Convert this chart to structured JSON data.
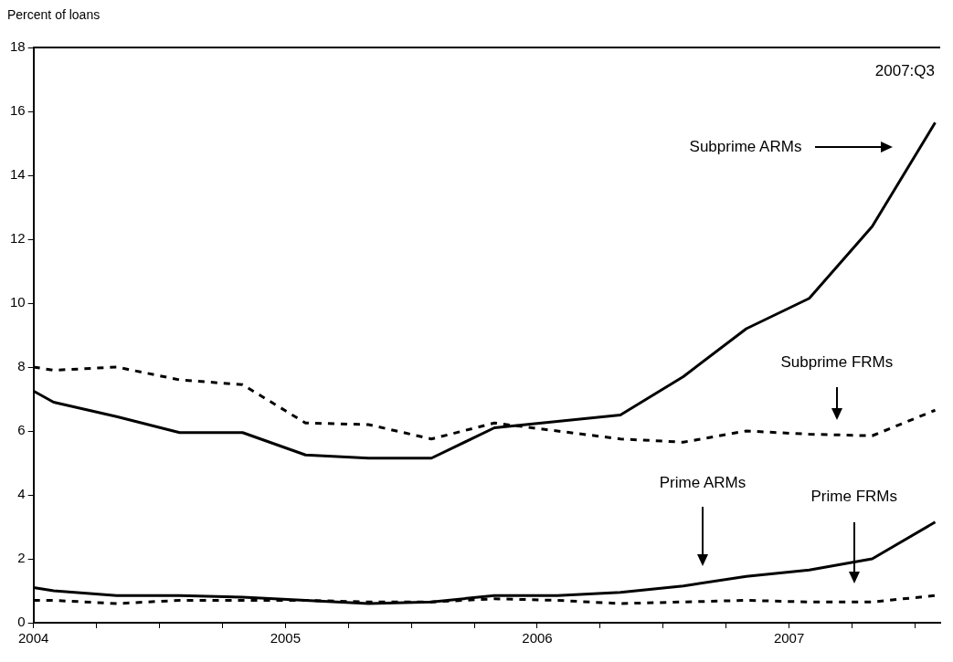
{
  "chart_data": {
    "type": "line",
    "ylabel": "Percent of loans",
    "x": [
      2004.0,
      2004.08,
      2004.33,
      2004.58,
      2004.83,
      2005.08,
      2005.33,
      2005.58,
      2005.83,
      2006.08,
      2006.33,
      2006.58,
      2006.83,
      2007.08,
      2007.33,
      2007.58
    ],
    "series": [
      {
        "color": "#000000",
        "line_style": "solid",
        "values": [
          7.25,
          6.9,
          6.45,
          5.95,
          5.95,
          5.25,
          5.15,
          5.15,
          6.1,
          6.3,
          6.5,
          7.7,
          9.2,
          10.15,
          12.4,
          15.65
        ]
      },
      {
        "color": "#000000",
        "line_style": "dashed",
        "values": [
          8.0,
          7.9,
          8.0,
          7.6,
          7.45,
          6.25,
          6.2,
          5.75,
          6.25,
          6.0,
          5.75,
          5.65,
          6.0,
          5.9,
          5.85,
          6.65
        ]
      },
      {
        "color": "#000000",
        "line_style": "solid",
        "values": [
          1.1,
          1.0,
          0.85,
          0.85,
          0.8,
          0.7,
          0.6,
          0.65,
          0.85,
          0.85,
          0.95,
          1.15,
          1.45,
          1.65,
          2.0,
          3.15
        ]
      },
      {
        "color": "#000000",
        "line_style": "dashed",
        "values": [
          0.7,
          0.7,
          0.6,
          0.7,
          0.7,
          0.7,
          0.65,
          0.65,
          0.75,
          0.7,
          0.6,
          0.65,
          0.7,
          0.65,
          0.65,
          0.85
        ]
      }
    ],
    "annotations": [
      "2007:Q3",
      "Subprime ARMs",
      "Subprime FRMs",
      "Prime ARMs",
      "Prime FRMs"
    ],
    "xlim": [
      2004,
      2007.6
    ],
    "xticks": [
      2004,
      {
        "value": 2004.25,
        "label": null
      },
      {
        "value": 2004.5,
        "label": null
      },
      {
        "value": 2004.75,
        "label": null
      },
      2005,
      {
        "value": 2005.25,
        "label": null
      },
      {
        "value": 2005.5,
        "label": null
      },
      {
        "value": 2005.75,
        "label": null
      },
      2006,
      {
        "value": 2006.25,
        "label": null
      },
      {
        "value": 2006.5,
        "label": null
      },
      {
        "value": 2006.75,
        "label": null
      },
      2007,
      {
        "value": 2007.25,
        "label": null
      },
      {
        "value": 2007.5,
        "label": null
      }
    ],
    "ylim": [
      0,
      18
    ],
    "yticks": [
      0,
      2,
      4,
      6,
      8,
      10,
      12,
      14,
      16,
      18
    ],
    "grid": false,
    "legend": false,
    "marker": "none"
  }
}
